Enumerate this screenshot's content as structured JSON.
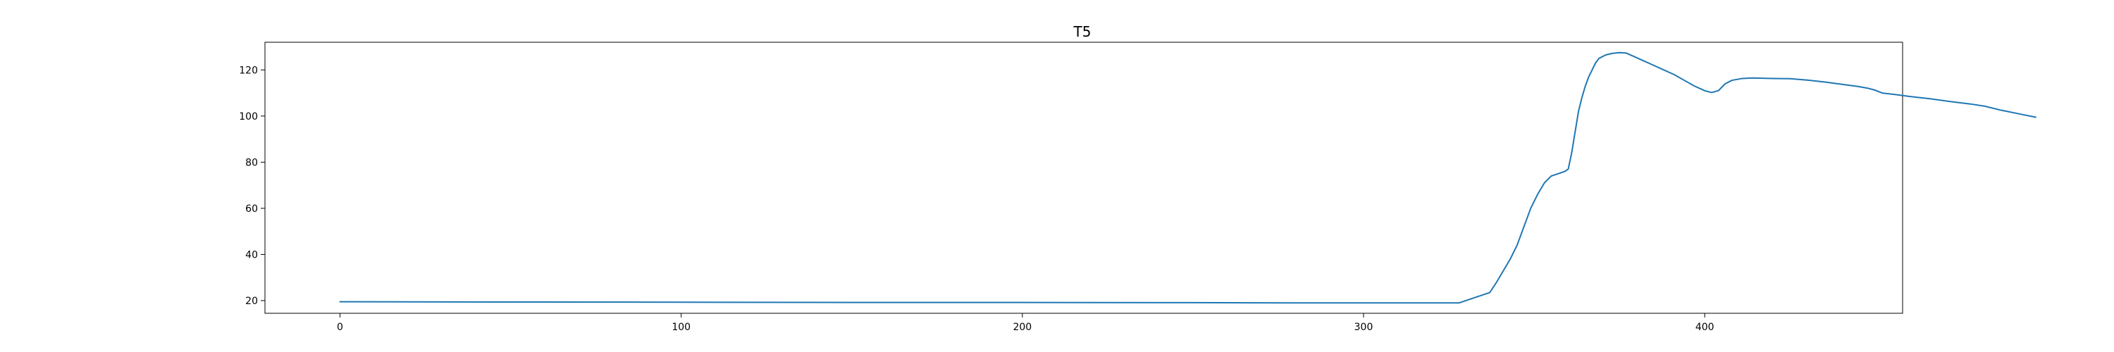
{
  "chart_data": {
    "type": "line",
    "title": "T5",
    "xlabel": "",
    "ylabel": "",
    "xlim": [
      -22,
      458
    ],
    "ylim": [
      14.5,
      132
    ],
    "xticks": [
      0,
      100,
      200,
      300,
      400
    ],
    "yticks": [
      20,
      40,
      60,
      80,
      100,
      120
    ],
    "grid": false,
    "legend": "none",
    "series": [
      {
        "color": "#1f77b4",
        "points": [
          [
            0,
            19.5
          ],
          [
            50,
            19.4
          ],
          [
            100,
            19.3
          ],
          [
            150,
            19.2
          ],
          [
            200,
            19.2
          ],
          [
            250,
            19.1
          ],
          [
            280,
            19.0
          ],
          [
            300,
            19.0
          ],
          [
            320,
            19.0
          ],
          [
            328,
            19.0
          ],
          [
            331,
            20.5
          ],
          [
            334,
            22.0
          ],
          [
            337,
            23.5
          ],
          [
            339,
            28.0
          ],
          [
            341,
            33.0
          ],
          [
            343,
            38.0
          ],
          [
            345,
            44.0
          ],
          [
            347,
            52.0
          ],
          [
            349,
            60.0
          ],
          [
            351,
            66.0
          ],
          [
            353,
            71.0
          ],
          [
            355,
            74.0
          ],
          [
            357,
            75.0
          ],
          [
            359,
            76.0
          ],
          [
            360,
            77.0
          ],
          [
            361,
            84.0
          ],
          [
            362,
            93.0
          ],
          [
            363,
            102.0
          ],
          [
            364,
            108.0
          ],
          [
            365,
            113.0
          ],
          [
            366,
            117.0
          ],
          [
            367,
            120.0
          ],
          [
            368,
            123.0
          ],
          [
            369,
            125.0
          ],
          [
            371,
            126.5
          ],
          [
            373,
            127.2
          ],
          [
            375,
            127.5
          ],
          [
            377,
            127.3
          ],
          [
            379,
            126.0
          ],
          [
            382,
            124.0
          ],
          [
            385,
            122.0
          ],
          [
            388,
            120.0
          ],
          [
            391,
            118.0
          ],
          [
            394,
            115.5
          ],
          [
            397,
            113.0
          ],
          [
            400,
            111.0
          ],
          [
            402,
            110.2
          ],
          [
            404,
            111.0
          ],
          [
            406,
            114.0
          ],
          [
            408,
            115.5
          ],
          [
            411,
            116.3
          ],
          [
            414,
            116.5
          ],
          [
            420,
            116.3
          ],
          [
            425,
            116.2
          ],
          [
            430,
            115.6
          ],
          [
            435,
            114.8
          ],
          [
            440,
            113.8
          ],
          [
            445,
            112.8
          ],
          [
            448,
            112.0
          ],
          [
            450,
            111.2
          ],
          [
            452,
            110.0
          ],
          [
            456,
            109.3
          ],
          [
            460,
            108.5
          ],
          [
            466,
            107.5
          ],
          [
            472,
            106.3
          ],
          [
            478,
            105.2
          ],
          [
            482,
            104.3
          ],
          [
            487,
            102.5
          ],
          [
            492,
            101.0
          ],
          [
            497,
            99.5
          ]
        ]
      }
    ]
  }
}
